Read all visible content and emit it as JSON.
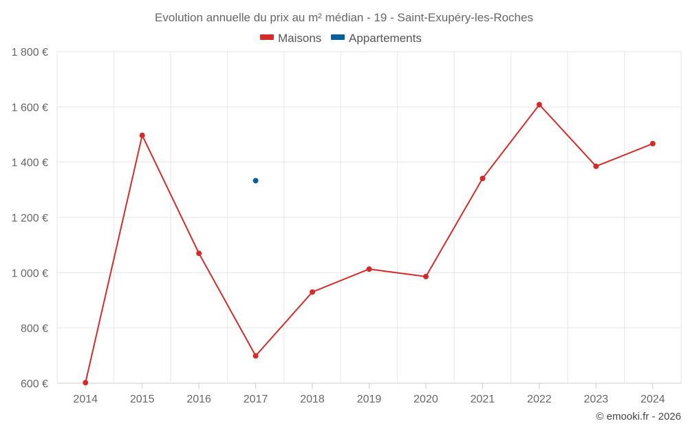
{
  "chart_data": {
    "type": "line",
    "title": "Evolution annuelle du prix au m² médian - 19 - Saint-Exupéry-les-Roches",
    "categories": [
      "2014",
      "2015",
      "2016",
      "2017",
      "2018",
      "2019",
      "2020",
      "2021",
      "2022",
      "2023",
      "2024"
    ],
    "series": [
      {
        "name": "Maisons",
        "color": "#d42a2a",
        "values": [
          602,
          1497,
          1070,
          699,
          930,
          1013,
          986,
          1341,
          1608,
          1385,
          1467
        ]
      },
      {
        "name": "Appartements",
        "color": "#0a5e99",
        "values": [
          null,
          null,
          null,
          1333,
          null,
          null,
          null,
          null,
          null,
          null,
          null
        ]
      }
    ],
    "ylim": [
      600,
      1800
    ],
    "yticks": [
      600,
      800,
      1000,
      1200,
      1400,
      1600,
      1800
    ],
    "ytick_labels": [
      "600 €",
      "800 €",
      "1 000 €",
      "1 200 €",
      "1 400 €",
      "1 600 €",
      "1 800 €"
    ],
    "legend_position": "top-center",
    "grid": true,
    "xlabel": "",
    "ylabel": ""
  },
  "credit": "© emooki.fr - 2026"
}
